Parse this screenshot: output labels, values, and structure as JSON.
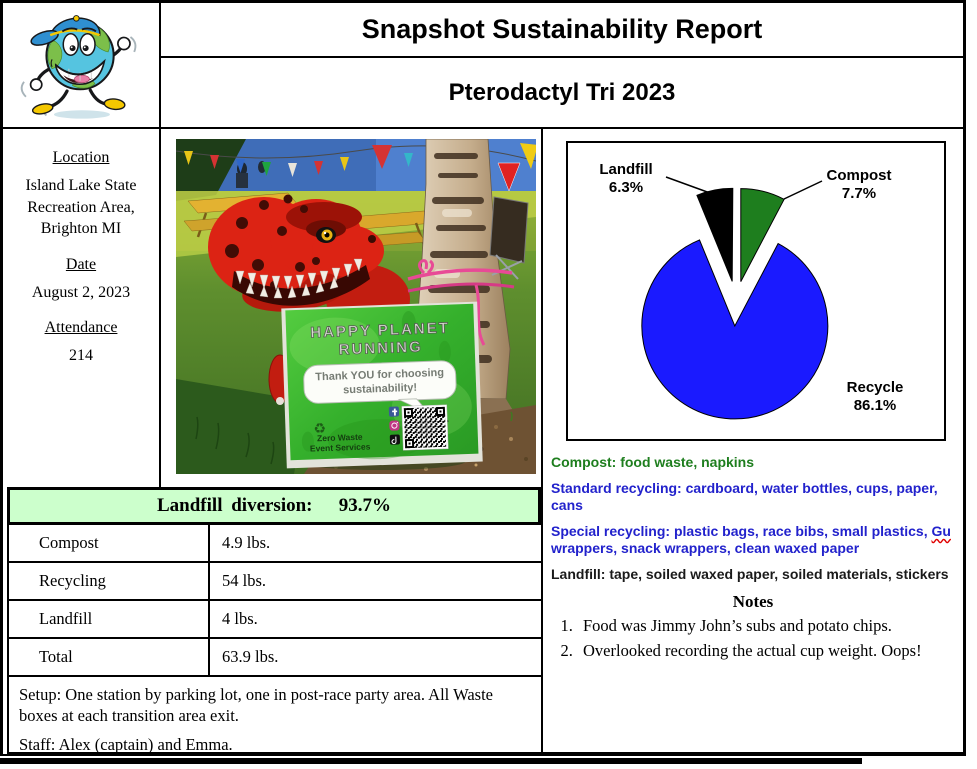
{
  "header": {
    "title": "Snapshot Sustainability Report",
    "subtitle": "Pterodactyl Tri 2023"
  },
  "info": {
    "location_label": "Location",
    "location": "Island Lake State Recreation Area, Brighton MI",
    "date_label": "Date",
    "date": "August 2, 2023",
    "attendance_label": "Attendance",
    "attendance": "214"
  },
  "chart_data": {
    "type": "pie",
    "title": "",
    "start_angle": "top",
    "clockwise": true,
    "exploded": true,
    "legend": "none",
    "labels_on_chart": true,
    "unit": "%",
    "slices": [
      {
        "label": "Compost",
        "value": 7.7,
        "color": "#1e7e1e",
        "explode": 20
      },
      {
        "label": "Recycle",
        "value": 86.1,
        "color": "#1a1aff",
        "explode": 25
      },
      {
        "label": "Landfill",
        "value": 6.3,
        "color": "#000000",
        "explode": 20
      }
    ]
  },
  "waste_streams": {
    "compost": "Compost: food waste, napkins",
    "standard": "Standard recycling: cardboard, water bottles, cups, paper, cans",
    "special_prefix": "Special recycling: plastic bags, race bibs, small plastics, ",
    "special_misspelled": "Gu",
    "special_suffix": " wrappers, snack wrappers, clean waxed paper",
    "landfill": "Landfill: tape, soiled waxed paper, soiled materials, stickers"
  },
  "notes": {
    "heading": "Notes",
    "items": [
      "Food was Jimmy John’s subs and potato chips.",
      "Overlooked recording the actual cup weight. Oops!"
    ]
  },
  "diversion": {
    "header": "Landfill diversion:   93.7%",
    "rows": [
      [
        "Compost",
        "4.9 lbs."
      ],
      [
        "Recycling",
        "54 lbs."
      ],
      [
        "Landfill",
        "4 lbs."
      ],
      [
        "Total",
        "63.9 lbs."
      ]
    ]
  },
  "logistics": {
    "setup": "Setup: One station by parking lot, one in post-race party area. All Waste boxes at each transition area exit.",
    "staff": "Staff: Alex (captain) and Emma."
  },
  "photo": {
    "sign_line1": "HAPPY PLANET",
    "sign_line2": "RUNNING",
    "bubble_line1": "Thank YOU for choosing",
    "bubble_line2": "sustainability!",
    "org_line1": "Zero Waste",
    "org_line2": "Event Services",
    "recycle_icon": "♻"
  },
  "colors": {
    "recycle_blue": "#1a1aff",
    "compost_green": "#1e7e1e",
    "landfill_black": "#000000",
    "diversion_header_bg": "#ccffcc",
    "standard_text_blue": "#2222cc"
  }
}
